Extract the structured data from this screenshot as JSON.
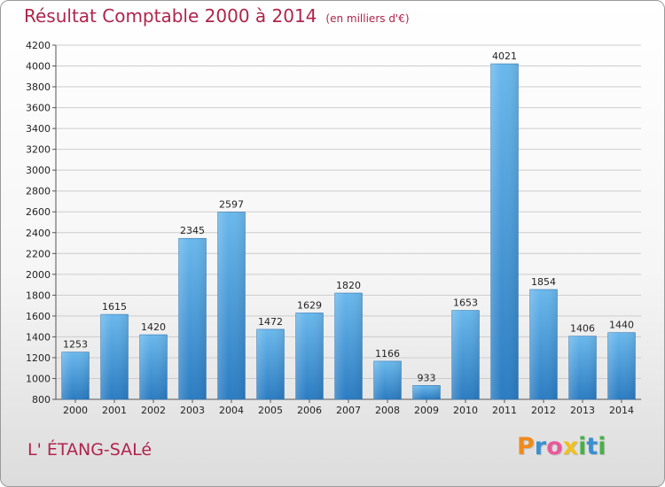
{
  "title": "Résultat Comptable 2000 à 2014",
  "subtitle": "(en milliers d'€)",
  "commune": "L' ÉTANG-SALé",
  "logo": {
    "letters": [
      "P",
      "r",
      "o",
      "x",
      "i",
      "t",
      "i"
    ],
    "colors": [
      "#f08a1c",
      "#3a8fd0",
      "#e85a9a",
      "#f0c020",
      "#48b048",
      "#3a8fd0",
      "#48b048"
    ]
  },
  "colors": {
    "title": "#b0244c",
    "bar_light": "#6ab8ec",
    "bar_dark": "#2b7cc2",
    "grid": "#cccccc"
  },
  "chart_data": {
    "type": "bar",
    "title": "Résultat Comptable 2000 à 2014",
    "categories": [
      "2000",
      "2001",
      "2002",
      "2003",
      "2004",
      "2005",
      "2006",
      "2007",
      "2008",
      "2009",
      "2010",
      "2011",
      "2012",
      "2013",
      "2014"
    ],
    "values": [
      1253,
      1615,
      1420,
      2345,
      2597,
      1472,
      1629,
      1820,
      1166,
      933,
      1653,
      4021,
      1854,
      1406,
      1440
    ],
    "ylim": [
      800,
      4200
    ],
    "yticks": [
      800,
      1000,
      1200,
      1400,
      1600,
      1800,
      2000,
      2200,
      2400,
      2600,
      2800,
      3000,
      3200,
      3400,
      3600,
      3800,
      4000,
      4200
    ],
    "grid": true,
    "data_labels": true
  }
}
